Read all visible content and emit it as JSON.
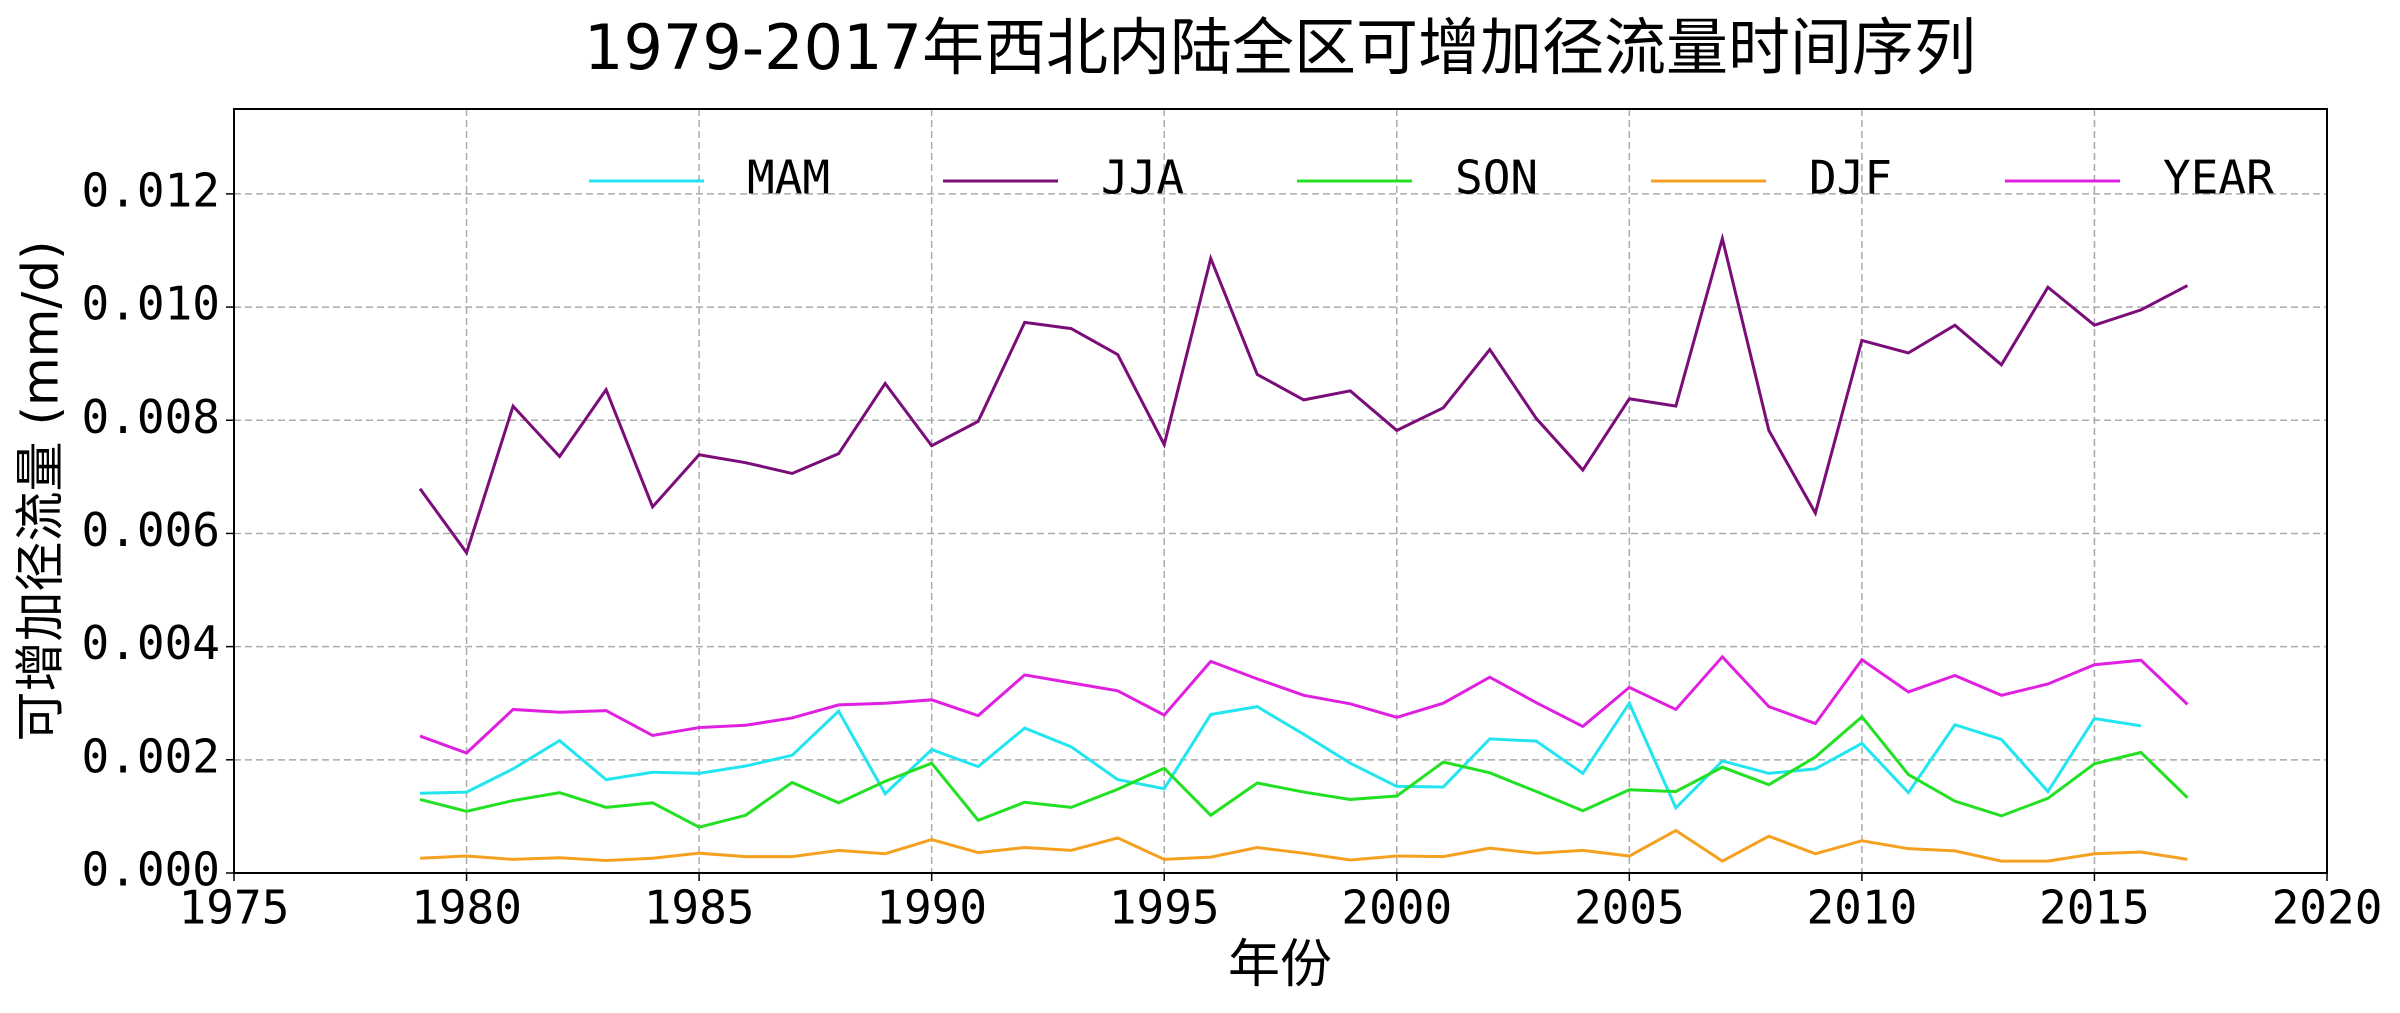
{
  "chart_data": {
    "type": "line",
    "title": "1979-2017年西北内陆全区可增加径流量时间序列",
    "x_label": "年份",
    "y_label": "可增加径流量 (mm/d)",
    "x": [
      1979,
      1980,
      1981,
      1982,
      1983,
      1984,
      1985,
      1986,
      1987,
      1988,
      1989,
      1990,
      1991,
      1992,
      1993,
      1994,
      1995,
      1996,
      1997,
      1998,
      1999,
      2000,
      2001,
      2002,
      2003,
      2004,
      2005,
      2006,
      2007,
      2008,
      2009,
      2010,
      2011,
      2012,
      2013,
      2014,
      2015,
      2016,
      2017
    ],
    "series": [
      {
        "name": "MAM",
        "color": "#22e5f0",
        "values": [
          0.00141,
          0.00143,
          0.00184,
          0.00234,
          0.00165,
          0.00178,
          0.00176,
          0.00189,
          0.00208,
          0.00286,
          0.0014,
          0.00218,
          0.00188,
          0.00256,
          0.00223,
          0.00165,
          0.00149,
          0.0028,
          0.00294,
          0.00245,
          0.00194,
          0.00153,
          0.00152,
          0.00237,
          0.00233,
          0.00176,
          0.003,
          0.00115,
          0.00198,
          0.00176,
          0.00184,
          0.00229,
          0.00142,
          0.00262,
          0.00236,
          0.00144,
          0.00273,
          0.0026,
          null
        ]
      },
      {
        "name": "JJA",
        "color": "#7a0d78",
        "values": [
          0.00679,
          0.00566,
          0.00825,
          0.00736,
          0.00854,
          0.00647,
          0.00739,
          0.00725,
          0.00706,
          0.00741,
          0.00865,
          0.00755,
          0.00798,
          0.00973,
          0.00962,
          0.00916,
          0.00757,
          0.01086,
          0.00881,
          0.00836,
          0.00852,
          0.00782,
          0.00822,
          0.00925,
          0.00803,
          0.00712,
          0.00838,
          0.00825,
          0.01121,
          0.00782,
          0.00636,
          0.00941,
          0.00919,
          0.00968,
          0.00898,
          0.01035,
          0.00968,
          0.00995,
          0.01038
        ]
      },
      {
        "name": "SON",
        "color": "#22e022",
        "values": [
          0.0013,
          0.00109,
          0.00128,
          0.00142,
          0.00116,
          0.00124,
          0.00081,
          0.00102,
          0.0016,
          0.00124,
          0.00162,
          0.00194,
          0.00093,
          0.00125,
          0.00116,
          0.00148,
          0.00185,
          0.00102,
          0.00159,
          0.00143,
          0.0013,
          0.00136,
          0.00196,
          0.00177,
          0.00144,
          0.0011,
          0.00147,
          0.00144,
          0.00187,
          0.00156,
          0.00205,
          0.00276,
          0.00174,
          0.00127,
          0.00101,
          0.00132,
          0.00193,
          0.00213,
          0.00133
        ]
      },
      {
        "name": "DJF",
        "color": "#f5a020",
        "values": [
          0.00026,
          0.0003,
          0.00024,
          0.00027,
          0.00022,
          0.00026,
          0.00035,
          0.00029,
          0.00029,
          0.0004,
          0.00034,
          0.00059,
          0.00036,
          0.00045,
          0.0004,
          0.00062,
          0.00024,
          0.00028,
          0.00045,
          0.00035,
          0.00023,
          0.0003,
          0.00029,
          0.00044,
          0.00035,
          0.0004,
          0.0003,
          0.00075,
          0.00021,
          0.00065,
          0.00034,
          0.00057,
          0.00043,
          0.00039,
          0.00021,
          0.00021,
          0.00034,
          0.00037,
          0.00024
        ]
      },
      {
        "name": "YEAR",
        "color": "#e020e0",
        "values": [
          0.00242,
          0.00212,
          0.00289,
          0.00284,
          0.00287,
          0.00243,
          0.00257,
          0.00261,
          0.00274,
          0.00297,
          0.003,
          0.00306,
          0.00278,
          0.0035,
          0.00336,
          0.00322,
          0.00279,
          0.00374,
          0.00343,
          0.00314,
          0.00299,
          0.00275,
          0.003,
          0.00346,
          0.00301,
          0.00259,
          0.00328,
          0.00289,
          0.00382,
          0.00294,
          0.00264,
          0.00377,
          0.0032,
          0.00349,
          0.00314,
          0.00334,
          0.00368,
          0.00376,
          0.00298
        ]
      }
    ],
    "xlim": [
      1975,
      2020
    ],
    "xticks": [
      1975,
      1980,
      1985,
      1990,
      1995,
      2000,
      2005,
      2010,
      2015,
      2020
    ],
    "ylim": [
      0,
      0.0135
    ],
    "yticks": [
      {
        "value": 0,
        "label": "0.000"
      },
      {
        "value": 0.002,
        "label": "0.002"
      },
      {
        "value": 0.004,
        "label": "0.004"
      },
      {
        "value": 0.006,
        "label": "0.006"
      },
      {
        "value": 0.008,
        "label": "0.008"
      },
      {
        "value": 0.01,
        "label": "0.010"
      },
      {
        "value": 0.012,
        "label": "0.012"
      }
    ],
    "grid": true,
    "legend": "upper center"
  }
}
